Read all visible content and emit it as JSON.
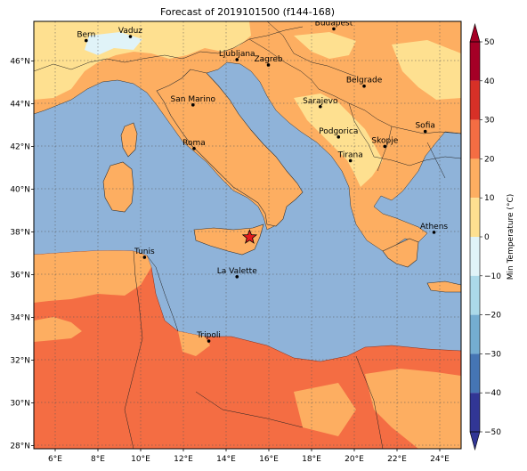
{
  "title": "Forecast of 2019101500 (f144-168)",
  "colorbar": {
    "label": "Min Temperature (°C)",
    "ticks": [
      "50",
      "40",
      "30",
      "20",
      "10",
      "0",
      "−10",
      "−20",
      "−30",
      "−40",
      "−50"
    ],
    "levels": [
      {
        "min": 40,
        "max": 50,
        "color": "#a50026"
      },
      {
        "min": 30,
        "max": 40,
        "color": "#d73027"
      },
      {
        "min": 20,
        "max": 30,
        "color": "#f46d43"
      },
      {
        "min": 10,
        "max": 20,
        "color": "#fdae61"
      },
      {
        "min": 0,
        "max": 10,
        "color": "#fee090"
      },
      {
        "min": -10,
        "max": 0,
        "color": "#e0f3f8"
      },
      {
        "min": -20,
        "max": -10,
        "color": "#abd9e9"
      },
      {
        "min": -30,
        "max": -20,
        "color": "#74add1"
      },
      {
        "min": -40,
        "max": -30,
        "color": "#4575b4"
      },
      {
        "min": -50,
        "max": -40,
        "color": "#313695"
      }
    ]
  },
  "axes": {
    "lon_ticks": [
      "6°E",
      "8°E",
      "10°E",
      "12°E",
      "14°E",
      "16°E",
      "18°E",
      "20°E",
      "22°E",
      "24°E"
    ],
    "lat_ticks": [
      "46°N",
      "44°N",
      "42°N",
      "40°N",
      "38°N",
      "36°N",
      "34°N",
      "32°N",
      "30°N",
      "28°N"
    ]
  },
  "cities": [
    {
      "name": "Bern",
      "lon": 7.45,
      "lat": 46.95
    },
    {
      "name": "Vaduz",
      "lon": 9.52,
      "lat": 47.14
    },
    {
      "name": "Budapest",
      "lon": 19.04,
      "lat": 47.5
    },
    {
      "name": "Ljubljana",
      "lon": 14.51,
      "lat": 46.06
    },
    {
      "name": "Zagreb",
      "lon": 15.98,
      "lat": 45.81
    },
    {
      "name": "San Marino",
      "lon": 12.45,
      "lat": 43.94
    },
    {
      "name": "Belgrade",
      "lon": 20.46,
      "lat": 44.82
    },
    {
      "name": "Sarajevo",
      "lon": 18.41,
      "lat": 43.86
    },
    {
      "name": "Sofia",
      "lon": 23.32,
      "lat": 42.7
    },
    {
      "name": "Roma",
      "lon": 12.5,
      "lat": 41.9
    },
    {
      "name": "Podgorica",
      "lon": 19.26,
      "lat": 42.44
    },
    {
      "name": "Skopje",
      "lon": 21.43,
      "lat": 42.0
    },
    {
      "name": "Tirana",
      "lon": 19.82,
      "lat": 41.33
    },
    {
      "name": "Athens",
      "lon": 23.73,
      "lat": 37.98
    },
    {
      "name": "Tunis",
      "lon": 10.18,
      "lat": 36.81
    },
    {
      "name": "La Valette",
      "lon": 14.51,
      "lat": 35.9
    },
    {
      "name": "Tripoli",
      "lon": 13.19,
      "lat": 32.89
    }
  ],
  "marker": {
    "name": "forecast-point-star",
    "lon": 15.1,
    "lat": 37.75,
    "color": "#e31a1c"
  },
  "colors": {
    "sea": "#8fb3d9",
    "land_warm": "#fdae61",
    "land_hot": "#f46d43",
    "land_mild": "#fee090",
    "land_cold": "#e0f3f8"
  }
}
